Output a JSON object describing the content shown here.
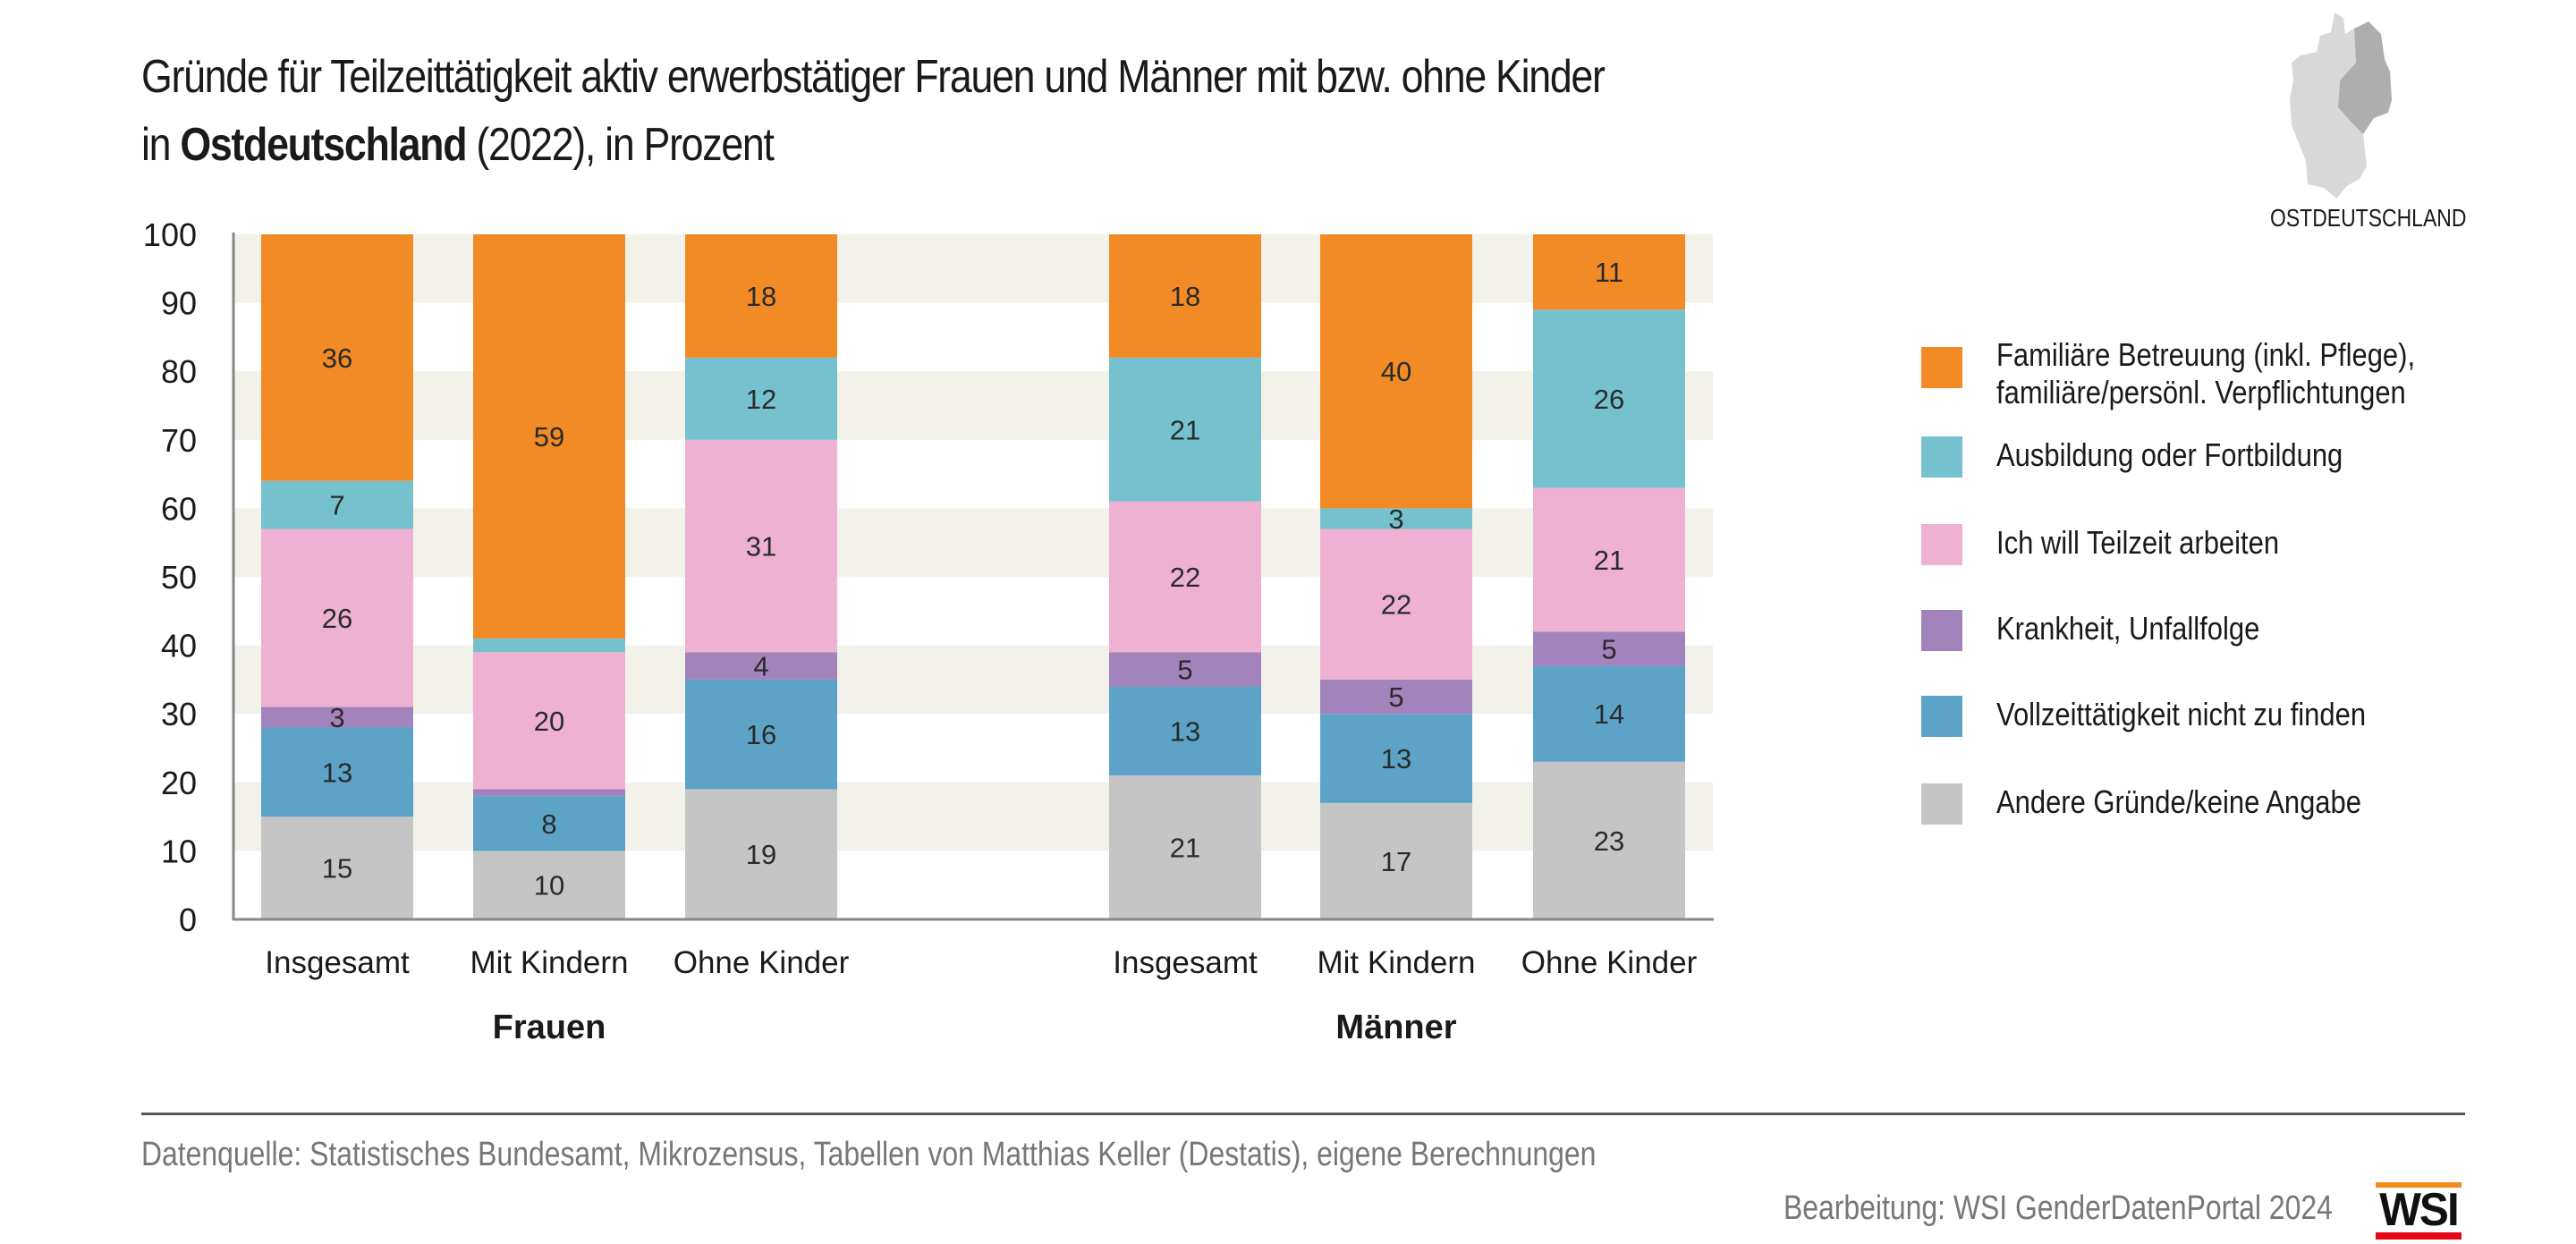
{
  "header": {
    "title_line1": "Gründe für Teilzeittätigkeit aktiv erwerbstätiger Frauen und Männer mit bzw. ohne Kinder",
    "title_line2_prefix": "in ",
    "title_line2_bold": "Ostdeutschland",
    "title_line2_suffix": " (2022), in Prozent"
  },
  "map": {
    "label": "OSTDEUTSCHLAND",
    "icon": "germany-map-icon"
  },
  "colors": {
    "orange": "#f28a25",
    "teal": "#75c1ce",
    "pink": "#eeb1d2",
    "purple": "#a383bb",
    "blue": "#5da3c8",
    "gray": "#c5c5c5",
    "band": "#f2f1ea",
    "axis": "#888888"
  },
  "chart_data": {
    "type": "bar",
    "stacked": true,
    "title": "Gründe für Teilzeittätigkeit aktiv erwerbstätiger Frauen und Männer mit bzw. ohne Kinder in Ostdeutschland (2022), in Prozent",
    "xlabel": "",
    "ylabel": "",
    "ylim": [
      0,
      100
    ],
    "yticks": [
      0,
      10,
      20,
      30,
      40,
      50,
      60,
      70,
      80,
      90,
      100
    ],
    "grid": "alternating horizontal bands",
    "legend_position": "right",
    "groups": [
      {
        "name": "Frauen",
        "categories": [
          "Insgesamt",
          "Mit Kindern",
          "Ohne Kinder"
        ]
      },
      {
        "name": "Männer",
        "categories": [
          "Insgesamt",
          "Mit Kindern",
          "Ohne Kinder"
        ]
      }
    ],
    "categories": [
      "Frauen – Insgesamt",
      "Frauen – Mit Kindern",
      "Frauen – Ohne Kinder",
      "Männer – Insgesamt",
      "Männer – Mit Kindern",
      "Männer – Ohne Kinder"
    ],
    "category_labels": [
      "Insgesamt",
      "Mit Kindern",
      "Ohne Kinder",
      "Insgesamt",
      "Mit Kindern",
      "Ohne Kinder"
    ],
    "series": [
      {
        "name": "Andere Gründe/keine Angabe",
        "color_key": "gray",
        "values": [
          15,
          10,
          19,
          21,
          17,
          23
        ],
        "labels": [
          "15",
          "10",
          "19",
          "21",
          "17",
          "23"
        ]
      },
      {
        "name": "Vollzeittätigkeit nicht zu finden",
        "color_key": "blue",
        "values": [
          13,
          8,
          16,
          13,
          13,
          14
        ],
        "labels": [
          "13",
          "8",
          "16",
          "13",
          "13",
          "14"
        ]
      },
      {
        "name": "Krankheit, Unfallfolge",
        "color_key": "purple",
        "values": [
          3,
          1,
          4,
          5,
          5,
          5
        ],
        "labels": [
          "3",
          "",
          "4",
          "5",
          "5",
          "5"
        ]
      },
      {
        "name": "Ich will Teilzeit arbeiten",
        "color_key": "pink",
        "values": [
          26,
          20,
          31,
          22,
          22,
          21
        ],
        "labels": [
          "26",
          "20",
          "31",
          "22",
          "22",
          "21"
        ]
      },
      {
        "name": "Ausbildung oder Fortbildung",
        "color_key": "teal",
        "values": [
          7,
          2,
          12,
          21,
          3,
          26
        ],
        "labels": [
          "7",
          "",
          "12",
          "21",
          "3",
          "26"
        ]
      },
      {
        "name": "Familiäre Betreuung (inkl. Pflege), familiäre/persönl. Verpflichtungen",
        "color_key": "orange",
        "values": [
          36,
          59,
          18,
          18,
          40,
          11
        ],
        "labels": [
          "36",
          "59",
          "18",
          "18",
          "40",
          "11"
        ]
      }
    ]
  },
  "legend": [
    {
      "line1": "Familiäre Betreuung (inkl. Pflege),",
      "line2": "familiäre/persönl. Verpflichtungen",
      "color_key": "orange"
    },
    {
      "line1": "Ausbildung oder Fortbildung",
      "line2": "",
      "color_key": "teal"
    },
    {
      "line1": "Ich will Teilzeit arbeiten",
      "line2": "",
      "color_key": "pink"
    },
    {
      "line1": "Krankheit, Unfallfolge",
      "line2": "",
      "color_key": "purple"
    },
    {
      "line1": "Vollzeittätigkeit nicht zu finden",
      "line2": "",
      "color_key": "blue"
    },
    {
      "line1": "Andere Gründe/keine Angabe",
      "line2": "",
      "color_key": "gray"
    }
  ],
  "footer": {
    "source": "Datenquelle: Statistisches Bundesamt, Mikrozensus, Tabellen von Matthias Keller (Destatis), eigene Berechnungen",
    "credit": "Bearbeitung: WSI GenderDatenPortal 2024",
    "logo_text": "WSI"
  }
}
